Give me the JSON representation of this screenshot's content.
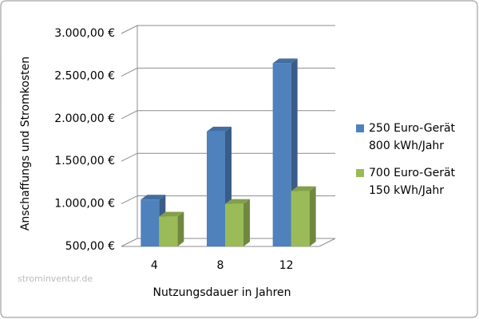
{
  "chart_data": {
    "type": "bar3d",
    "x_label": "Nutzungsdauer in Jahren",
    "y_label": "Anschaffungs und Stromkosten",
    "watermark": "strominventur.de",
    "categories": [
      "4",
      "8",
      "12"
    ],
    "series": [
      {
        "name": "250 Euro-Gerät 800 kWh/Jahr",
        "color": "#4f81bd",
        "values": [
          1050,
          1850,
          2650
        ]
      },
      {
        "name": "700 Euro-Gerät 150 kWh/Jahr",
        "color": "#9bbb59",
        "values": [
          850,
          1000,
          1150
        ]
      }
    ],
    "ylim": [
      500,
      3000
    ],
    "yticks": [
      {
        "value": 500,
        "label": "500,00 €"
      },
      {
        "value": 1000,
        "label": "1.000,00 €"
      },
      {
        "value": 1500,
        "label": "1.500,00 €"
      },
      {
        "value": 2000,
        "label": "2.000,00 €"
      },
      {
        "value": 2500,
        "label": "2.500,00 €"
      },
      {
        "value": 3000,
        "label": "3.000,00 €"
      }
    ],
    "grid": true
  }
}
